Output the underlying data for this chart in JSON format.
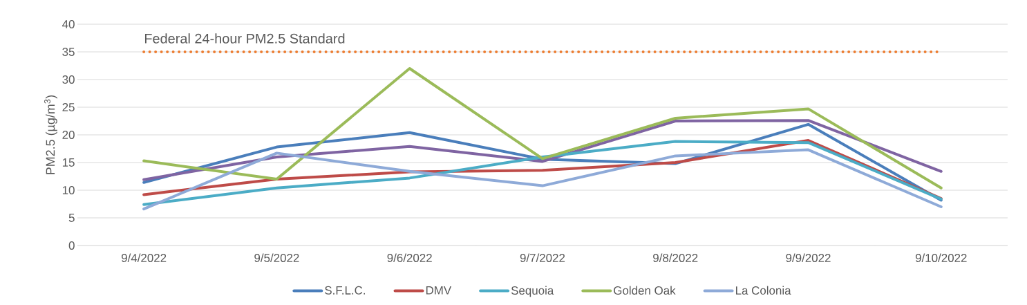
{
  "chart_data": {
    "type": "line",
    "ylabel": "PM2.5 (µg/m$^{3}$)",
    "categories": [
      "9/4/2022",
      "9/5/2022",
      "9/6/2022",
      "9/7/2022",
      "9/8/2022",
      "9/9/2022",
      "9/10/2022"
    ],
    "series": [
      {
        "name": "S.F.L.C.",
        "color": "#4a7ebb",
        "values": [
          11.4,
          17.8,
          20.4,
          15.6,
          14.8,
          21.9,
          8.2
        ]
      },
      {
        "name": "DMV",
        "color": "#be4b48",
        "values": [
          9.2,
          12.0,
          13.3,
          13.6,
          15.0,
          19.0,
          8.5
        ]
      },
      {
        "color": "#7f64a2",
        "values": [
          11.9,
          16.0,
          17.9,
          15.2,
          22.5,
          22.6,
          13.4
        ]
      },
      {
        "name": "Sequoia",
        "color": "#4bacc6",
        "values": [
          7.4,
          10.4,
          12.2,
          16.0,
          18.8,
          18.6,
          8.4
        ]
      },
      {
        "name": "Golden Oak",
        "color": "#9bbb59",
        "values": [
          15.3,
          12.0,
          32.0,
          15.7,
          23.0,
          24.7,
          10.4
        ]
      },
      {
        "name": "La Colonia",
        "color": "#8eaad8",
        "values": [
          6.6,
          16.7,
          13.4,
          10.8,
          16.2,
          17.3,
          7.0
        ]
      }
    ],
    "ylim": [
      0,
      40
    ],
    "yticks": [
      0,
      5,
      10,
      15,
      20,
      25,
      30,
      35,
      40
    ],
    "grid": "y",
    "legend": "bottom",
    "marker": "none",
    "line_style": "solid",
    "ref_lines": [
      {
        "axis": "y",
        "value": 35,
        "label": "Federal 24-hour PM2.5 Standard",
        "color": "#ed7d31",
        "line_style": "dotted"
      }
    ]
  }
}
